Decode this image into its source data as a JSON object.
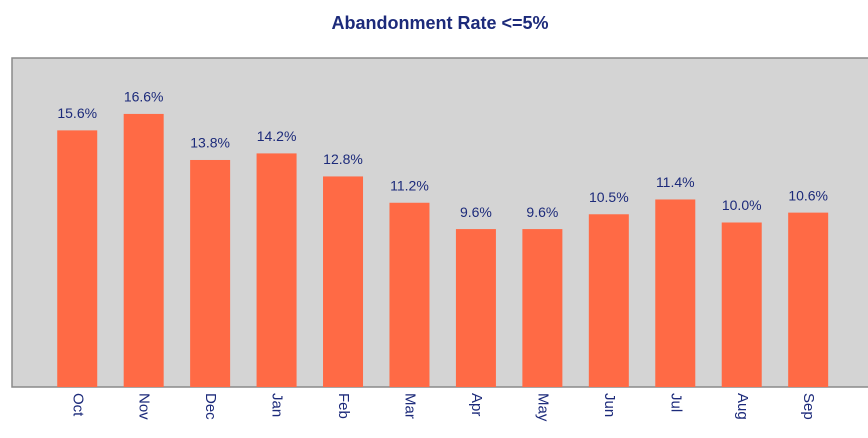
{
  "chart_data": {
    "type": "bar",
    "title": "Abandonment Rate <=5%",
    "categories": [
      "Oct",
      "Nov",
      "Dec",
      "Jan",
      "Feb",
      "Mar",
      "Apr",
      "May",
      "Jun",
      "Jul",
      "Aug",
      "Sep"
    ],
    "values": [
      15.6,
      16.6,
      13.8,
      14.2,
      12.8,
      11.2,
      9.6,
      9.6,
      10.5,
      11.4,
      10.0,
      10.6
    ],
    "value_labels": [
      "15.6%",
      "16.6%",
      "13.8%",
      "14.2%",
      "12.8%",
      "11.2%",
      "9.6%",
      "9.6%",
      "10.5%",
      "11.4%",
      "10.0%",
      "10.6%"
    ],
    "color": "#ff6a45",
    "ylim": [
      0,
      20
    ]
  }
}
